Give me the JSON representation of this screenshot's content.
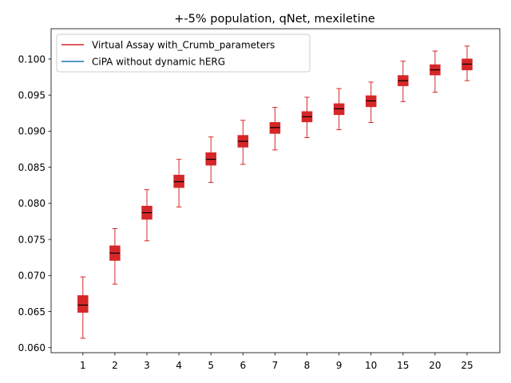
{
  "chart_data": {
    "type": "box",
    "title": "+-5% population, qNet, mexiletine",
    "xlabel": "",
    "ylabel": "",
    "categories": [
      "1",
      "2",
      "3",
      "4",
      "5",
      "6",
      "7",
      "8",
      "9",
      "10",
      "15",
      "20",
      "25"
    ],
    "ylim": [
      0.0593,
      0.1042
    ],
    "yticks": [
      0.06,
      0.065,
      0.07,
      0.075,
      0.08,
      0.085,
      0.09,
      0.095,
      0.1
    ],
    "ytick_labels": [
      "0.060",
      "0.065",
      "0.070",
      "0.075",
      "0.080",
      "0.085",
      "0.090",
      "0.095",
      "0.100"
    ],
    "grid": false,
    "legend_position": "upper-left",
    "legend": [
      {
        "label": "Virtual Assay with_Crumb_parameters",
        "color": "#d62728"
      },
      {
        "label": "CiPA without dynamic hERG",
        "color": "#1f77b4"
      }
    ],
    "series": [
      {
        "name": "Virtual Assay with_Crumb_parameters",
        "color": "#d62728",
        "boxes": [
          {
            "whislo": 0.0613,
            "q1": 0.0649,
            "median": 0.0659,
            "q3": 0.0672,
            "whishi": 0.0698
          },
          {
            "whislo": 0.0688,
            "q1": 0.0721,
            "median": 0.0731,
            "q3": 0.0741,
            "whishi": 0.0765
          },
          {
            "whislo": 0.0748,
            "q1": 0.0778,
            "median": 0.0787,
            "q3": 0.0796,
            "whishi": 0.0819
          },
          {
            "whislo": 0.0795,
            "q1": 0.0822,
            "median": 0.083,
            "q3": 0.0839,
            "whishi": 0.0861
          },
          {
            "whislo": 0.0829,
            "q1": 0.0853,
            "median": 0.0861,
            "q3": 0.087,
            "whishi": 0.0892
          },
          {
            "whislo": 0.0854,
            "q1": 0.0878,
            "median": 0.0886,
            "q3": 0.0894,
            "whishi": 0.0915
          },
          {
            "whislo": 0.0874,
            "q1": 0.0897,
            "median": 0.0905,
            "q3": 0.0912,
            "whishi": 0.0933
          },
          {
            "whislo": 0.0891,
            "q1": 0.0913,
            "median": 0.092,
            "q3": 0.0927,
            "whishi": 0.0947
          },
          {
            "whislo": 0.0902,
            "q1": 0.0923,
            "median": 0.0931,
            "q3": 0.0938,
            "whishi": 0.0959
          },
          {
            "whislo": 0.0912,
            "q1": 0.0934,
            "median": 0.0942,
            "q3": 0.0949,
            "whishi": 0.0968
          },
          {
            "whislo": 0.0941,
            "q1": 0.0963,
            "median": 0.097,
            "q3": 0.0977,
            "whishi": 0.0997
          },
          {
            "whislo": 0.0954,
            "q1": 0.0978,
            "median": 0.0985,
            "q3": 0.0992,
            "whishi": 0.1011
          },
          {
            "whislo": 0.097,
            "q1": 0.0985,
            "median": 0.0993,
            "q3": 0.1,
            "whishi": 0.1018
          }
        ]
      }
    ]
  }
}
